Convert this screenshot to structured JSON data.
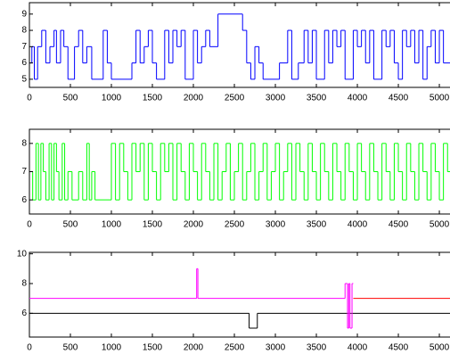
{
  "chart_data": [
    {
      "type": "line",
      "steps": true,
      "xlim": [
        0,
        5130
      ],
      "xticks": [
        0,
        500,
        1000,
        1500,
        2000,
        2500,
        3000,
        3500,
        4000,
        4500,
        5000
      ],
      "ylim": [
        4.5,
        9.7
      ],
      "yticks": [
        5,
        6,
        7,
        8,
        9
      ],
      "series": [
        {
          "color": "#0000ff",
          "x": [
            0,
            30,
            60,
            100,
            150,
            200,
            250,
            300,
            330,
            380,
            420,
            470,
            550,
            600,
            650,
            700,
            760,
            900,
            950,
            1000,
            1250,
            1300,
            1350,
            1400,
            1450,
            1500,
            1550,
            1650,
            1700,
            1750,
            1800,
            1850,
            1900,
            2000,
            2050,
            2100,
            2150,
            2200,
            2300,
            2600,
            2650,
            2700,
            2750,
            2800,
            2850,
            3050,
            3150,
            3200,
            3280,
            3350,
            3400,
            3450,
            3500,
            3600,
            3650,
            3700,
            3750,
            3800,
            3850,
            3950,
            4000,
            4050,
            4100,
            4150,
            4200,
            4300,
            4350,
            4400,
            4450,
            4500,
            4550,
            4600,
            4650,
            4700,
            4750,
            4800,
            4850,
            4900,
            4950,
            5000,
            5050
          ],
          "values": [
            6,
            7,
            5,
            7,
            8,
            6,
            7,
            8,
            6,
            8,
            7,
            5,
            7,
            8,
            6,
            7,
            5,
            8,
            6,
            5,
            6,
            8,
            6,
            7,
            8,
            6,
            5,
            8,
            6,
            8,
            7,
            8,
            5,
            8,
            6,
            7,
            8,
            7,
            9,
            8,
            6,
            5,
            7,
            6,
            5,
            6,
            8,
            5,
            6,
            8,
            6,
            8,
            5,
            8,
            6,
            8,
            7,
            8,
            5,
            8,
            7,
            8,
            6,
            8,
            5,
            8,
            7,
            8,
            6,
            5,
            8,
            7,
            8,
            6,
            8,
            5,
            7,
            8,
            6,
            8,
            6
          ]
        }
      ]
    },
    {
      "type": "line",
      "steps": true,
      "xlim": [
        0,
        5130
      ],
      "xticks": [
        0,
        500,
        1000,
        1500,
        2000,
        2500,
        3000,
        3500,
        4000,
        4500,
        5000
      ],
      "ylim": [
        5.5,
        8.5
      ],
      "yticks": [
        6,
        7,
        8
      ],
      "series": [
        {
          "color": "#00ff00",
          "x": [
            0,
            40,
            80,
            110,
            140,
            170,
            200,
            240,
            270,
            300,
            330,
            360,
            400,
            430,
            470,
            520,
            600,
            650,
            700,
            730,
            760,
            800,
            1000,
            1050,
            1100,
            1150,
            1200,
            1250,
            1300,
            1350,
            1400,
            1450,
            1500,
            1550,
            1600,
            1650,
            1700,
            1750,
            1800,
            1850,
            1900,
            1950,
            2000,
            2050,
            2100,
            2150,
            2200,
            2250,
            2300,
            2350,
            2400,
            2450,
            2500,
            2550,
            2600,
            2650,
            2700,
            2750,
            2800,
            2850,
            2900,
            2950,
            3000,
            3050,
            3100,
            3150,
            3200,
            3250,
            3300,
            3350,
            3400,
            3450,
            3500,
            3550,
            3600,
            3650,
            3700,
            3750,
            3800,
            3850,
            3900,
            3950,
            4000,
            4050,
            4100,
            4150,
            4200,
            4250,
            4300,
            4350,
            4400,
            4450,
            4500,
            4550,
            4600,
            4650,
            4700,
            4750,
            4800,
            4850,
            4900,
            4950,
            5000,
            5050,
            5100
          ],
          "values": [
            7,
            6,
            8,
            6,
            8,
            7,
            6,
            8,
            6,
            8,
            7,
            6,
            8,
            6,
            7,
            6,
            7,
            6,
            8,
            6,
            7,
            6,
            8,
            6,
            8,
            7,
            6,
            8,
            7,
            8,
            6,
            8,
            7,
            6,
            8,
            7,
            8,
            6,
            8,
            7,
            6,
            8,
            7,
            6,
            8,
            7,
            6,
            8,
            6,
            7,
            8,
            6,
            7,
            8,
            6,
            7,
            8,
            6,
            7,
            8,
            6,
            7,
            8,
            6,
            7,
            8,
            6,
            8,
            7,
            6,
            8,
            7,
            6,
            8,
            7,
            6,
            8,
            7,
            6,
            8,
            7,
            6,
            8,
            7,
            6,
            8,
            7,
            6,
            8,
            7,
            6,
            8,
            7,
            6,
            8,
            7,
            6,
            8,
            7,
            6,
            8,
            7,
            6,
            8,
            7
          ]
        }
      ]
    },
    {
      "type": "line",
      "steps": true,
      "xlim": [
        0,
        5130
      ],
      "xticks": [
        0,
        500,
        1000,
        1500,
        2000,
        2500,
        3000,
        3500,
        4000,
        4500,
        5000
      ],
      "ylim": [
        4.4,
        10.1
      ],
      "yticks": [
        6,
        8,
        10
      ],
      "series": [
        {
          "color": "#000000",
          "x": [
            0,
            2680,
            2780
          ],
          "values": [
            6,
            5,
            6
          ]
        },
        {
          "color": "#ff00ff",
          "x": [
            0,
            2040,
            2055,
            3850,
            3880,
            3895,
            3910,
            3935,
            3950
          ],
          "values": [
            7,
            9,
            7,
            8,
            5,
            8,
            5,
            8,
            null
          ]
        },
        {
          "color": "#ff0000",
          "x": [
            3950
          ],
          "values": [
            7
          ]
        }
      ]
    }
  ]
}
